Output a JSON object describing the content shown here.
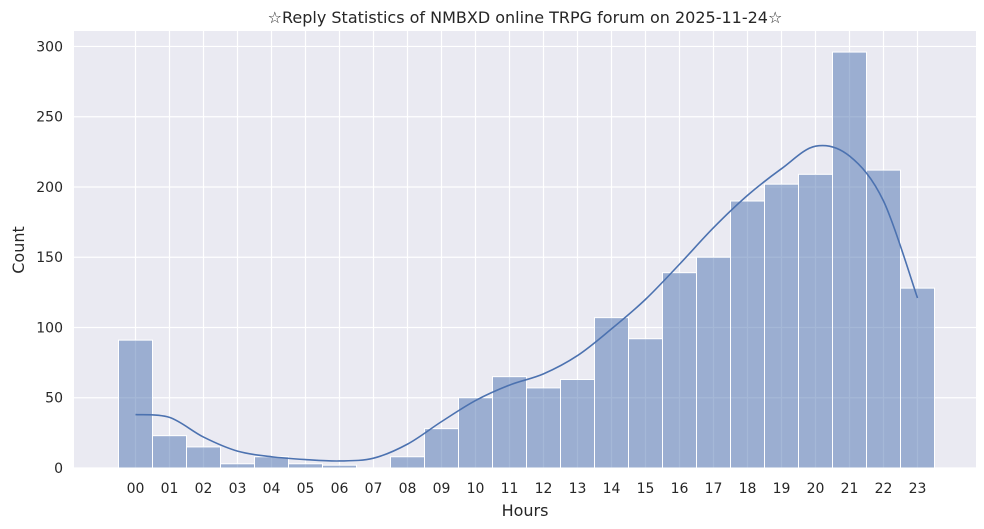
{
  "chart_data": {
    "type": "bar",
    "title": "☆Reply Statistics of NMBXD online TRPG forum on 2025-11-24☆",
    "xlabel": "Hours",
    "ylabel": "Count",
    "categories": [
      "00",
      "01",
      "02",
      "03",
      "04",
      "05",
      "06",
      "07",
      "08",
      "09",
      "10",
      "11",
      "12",
      "13",
      "14",
      "15",
      "16",
      "17",
      "18",
      "19",
      "20",
      "21",
      "22",
      "23"
    ],
    "values": [
      91,
      23,
      15,
      3,
      8,
      3,
      2,
      0,
      8,
      28,
      50,
      65,
      57,
      63,
      107,
      92,
      139,
      150,
      190,
      202,
      209,
      296,
      212,
      128
    ],
    "kde": [
      38,
      36,
      22,
      12,
      8,
      6,
      5,
      7,
      17,
      33,
      48,
      59,
      67,
      80,
      99,
      120,
      145,
      171,
      194,
      213,
      229,
      222,
      190,
      121
    ],
    "yticks": [
      0,
      50,
      100,
      150,
      200,
      250,
      300
    ],
    "ylim": [
      0,
      311
    ],
    "grid": true,
    "colors": {
      "bar": "#4c72b0",
      "bar_fill_alpha": 0.5,
      "line": "#4c72b0",
      "background": "#eaeaf2",
      "grid": "#ffffff"
    }
  }
}
